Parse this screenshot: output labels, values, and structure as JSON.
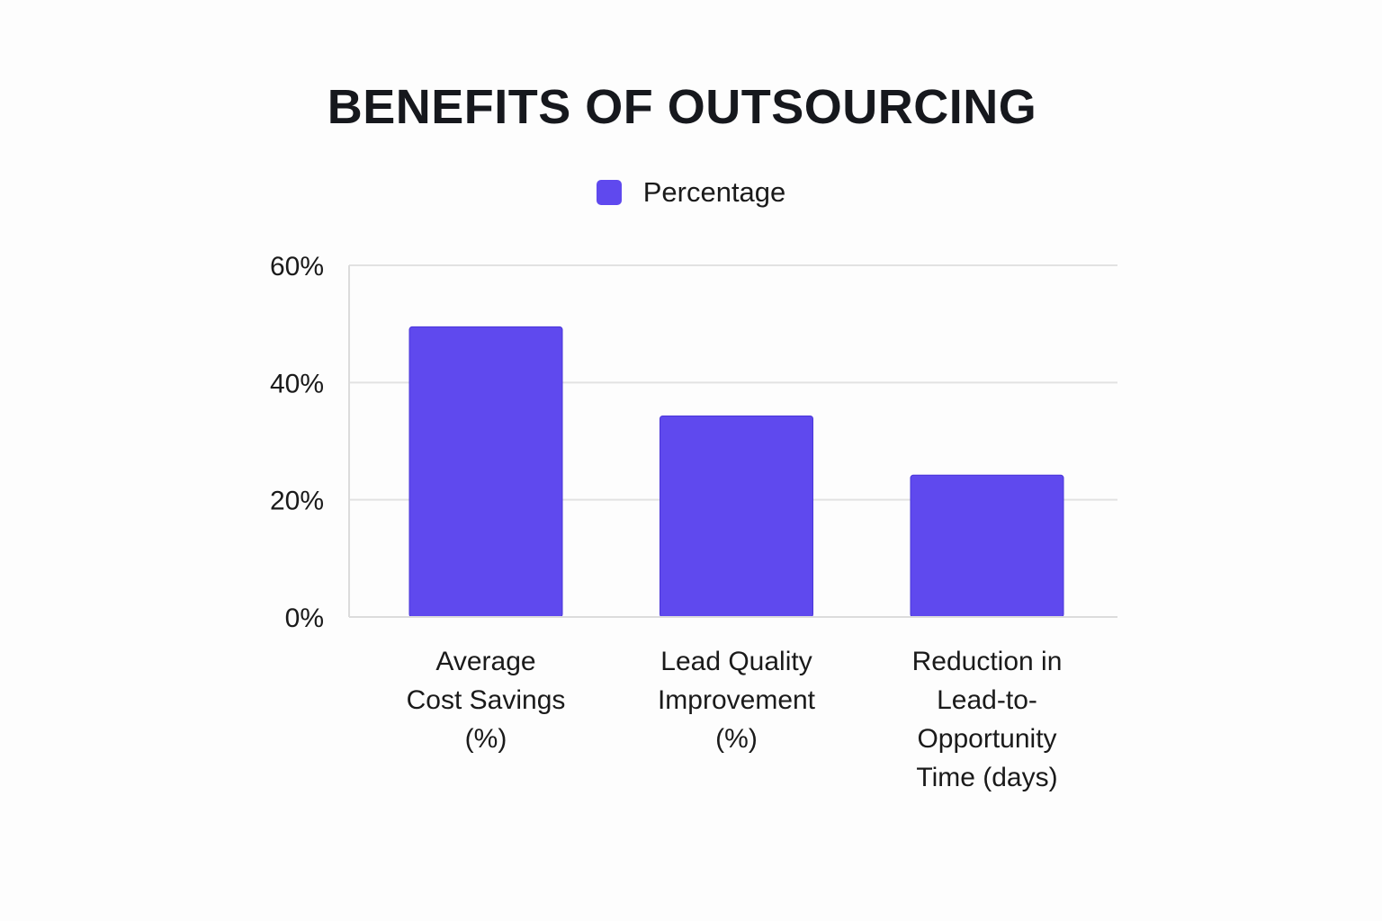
{
  "chart_data": {
    "type": "bar",
    "title": "BENEFITS OF OUTSOURCING",
    "categories": [
      "Average Cost Savings (%)",
      "Lead Quality Improvement (%)",
      "Reduction in Lead-to-Opportunity Time (days)"
    ],
    "category_lines": [
      [
        "Average",
        "Cost Savings",
        "(%)"
      ],
      [
        "Lead Quality",
        "Improvement",
        "(%)"
      ],
      [
        "Reduction in",
        "Lead-to-",
        "Opportunity",
        "Time (days)"
      ]
    ],
    "series": [
      {
        "name": "Percentage",
        "values": [
          49.5,
          34.3,
          24.2
        ],
        "color": "#5f49ee"
      }
    ],
    "ylim": [
      0,
      60
    ],
    "yticks": [
      0,
      20,
      40,
      60
    ],
    "ytick_labels": [
      "0%",
      "20%",
      "40%",
      "60%"
    ],
    "xlabel": "",
    "ylabel": "",
    "grid": true,
    "legend_position": "top-center"
  }
}
